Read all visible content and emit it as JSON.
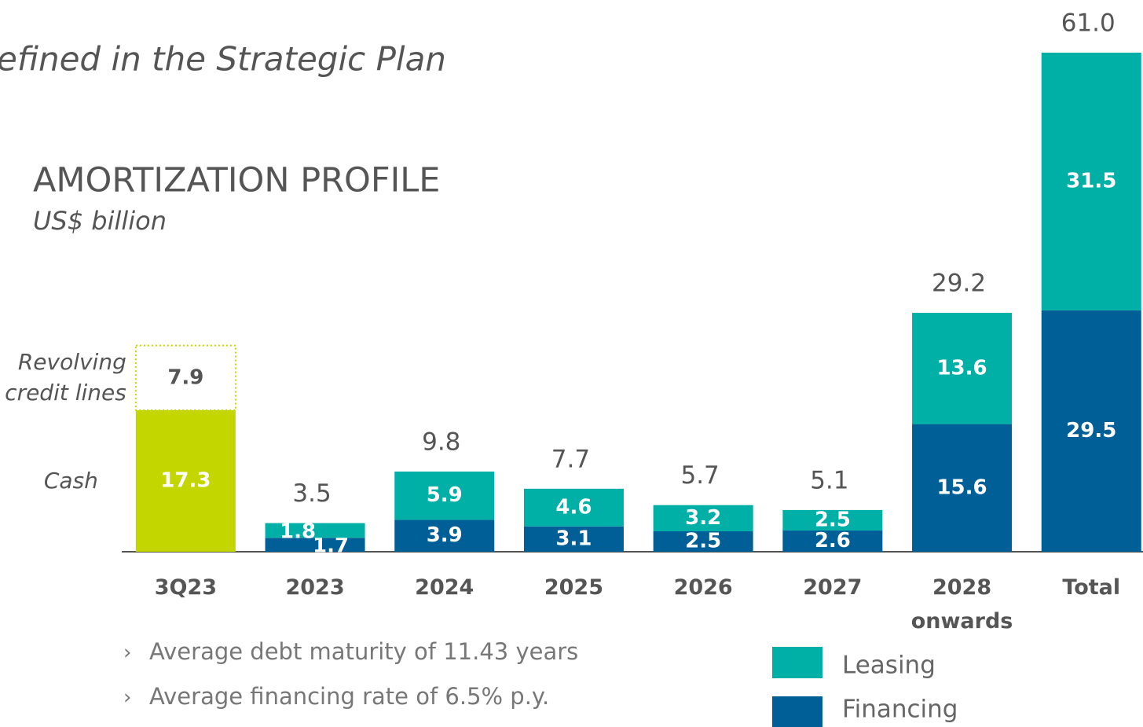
{
  "chart_data": {
    "type": "stacked_bar",
    "header": "efined in the Strategic Plan",
    "title": "AMORTIZATION PROFILE",
    "subtitle": "US$ billion",
    "categories": [
      "3Q23",
      "2023",
      "2024",
      "2025",
      "2026",
      "2027",
      "2028 onwards",
      "Total"
    ],
    "series": [
      {
        "name": "Financing",
        "color": "#005f96",
        "values": [
          null,
          1.7,
          3.9,
          3.1,
          2.5,
          2.6,
          15.6,
          29.5
        ]
      },
      {
        "name": "Leasing",
        "color": "#00b0a6",
        "values": [
          null,
          1.8,
          5.9,
          4.6,
          3.2,
          2.5,
          13.6,
          31.5
        ]
      },
      {
        "name": "Cash",
        "color": "#c4d600",
        "values": [
          17.3,
          null,
          null,
          null,
          null,
          null,
          null,
          null
        ]
      },
      {
        "name": "Revolving credit lines",
        "color": "#c4d600",
        "style": "dotted",
        "values": [
          7.9,
          null,
          null,
          null,
          null,
          null,
          null,
          null
        ]
      }
    ],
    "totals": [
      null,
      3.5,
      9.8,
      7.7,
      5.7,
      5.1,
      29.2,
      61.0
    ],
    "totals_labels": [
      null,
      "3.5",
      "9.8",
      "7.7",
      "5.7",
      "5.1",
      "29.2",
      "61.0"
    ],
    "ylim": [
      0,
      61
    ],
    "notes": [
      "Average debt maturity of 11.43 years",
      "Average financing rate of 6.5% p.y."
    ]
  }
}
